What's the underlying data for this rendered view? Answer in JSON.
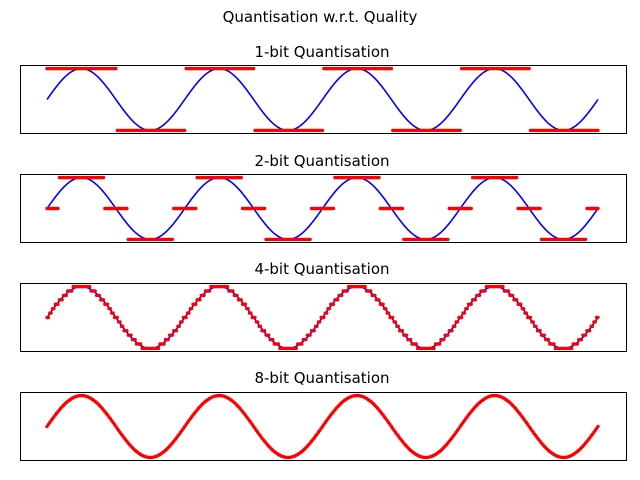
{
  "figure": {
    "title": "Quantisation w.r.t. Quality"
  },
  "colors": {
    "signal": "#0000ff",
    "quantised": "#ff0000",
    "frame": "#000000"
  },
  "chart_data": [
    {
      "type": "line",
      "title": "1-bit Quantisation",
      "bits": 1,
      "xticks": false,
      "yticks": false,
      "grid": false,
      "xlim": [
        0,
        8
      ],
      "ylim": [
        -1.1,
        1.1
      ],
      "series": [
        {
          "role": "signal",
          "style": "line",
          "function": "sin(2*pi*x/2)",
          "x_range": [
            0,
            8
          ]
        },
        {
          "role": "quantised",
          "style": "markers",
          "levels": 2,
          "level_values": [
            -1,
            1
          ]
        }
      ]
    },
    {
      "type": "line",
      "title": "2-bit Quantisation",
      "bits": 2,
      "xticks": false,
      "yticks": false,
      "grid": false,
      "xlim": [
        0,
        8
      ],
      "ylim": [
        -1.1,
        1.1
      ],
      "series": [
        {
          "role": "signal",
          "style": "line",
          "function": "sin(2*pi*x/2)",
          "x_range": [
            0,
            8
          ]
        },
        {
          "role": "quantised",
          "style": "markers",
          "levels": 3,
          "level_values": [
            -1,
            0,
            1
          ]
        }
      ]
    },
    {
      "type": "line",
      "title": "4-bit Quantisation",
      "bits": 4,
      "xticks": false,
      "yticks": false,
      "grid": false,
      "xlim": [
        0,
        8
      ],
      "ylim": [
        -1.1,
        1.1
      ],
      "series": [
        {
          "role": "signal",
          "style": "line",
          "function": "sin(2*pi*x/2)",
          "x_range": [
            0,
            8
          ]
        },
        {
          "role": "quantised",
          "style": "markers",
          "levels": 15
        }
      ]
    },
    {
      "type": "line",
      "title": "8-bit Quantisation",
      "bits": 8,
      "xticks": false,
      "yticks": false,
      "grid": false,
      "xlim": [
        0,
        8
      ],
      "ylim": [
        -1.1,
        1.1
      ],
      "series": [
        {
          "role": "signal",
          "style": "line",
          "function": "sin(2*pi*x/2)",
          "x_range": [
            0,
            8
          ]
        },
        {
          "role": "quantised",
          "style": "markers",
          "levels": 255
        }
      ]
    }
  ]
}
